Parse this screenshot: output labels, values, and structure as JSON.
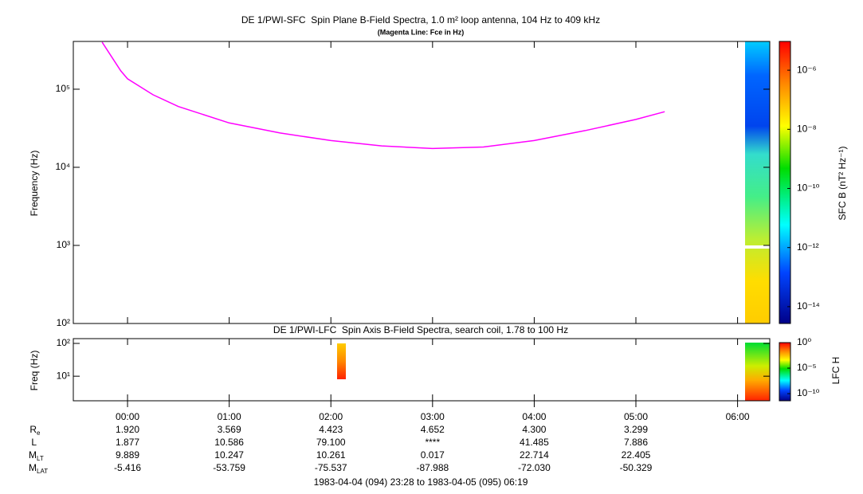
{
  "footer": "1983-04-04 (094) 23:28 to 1983-04-05 (095) 06:19",
  "chart_data": [
    {
      "type": "line",
      "title": "DE 1/PWI-SFC  Spin Plane B-Field Spectra, 1.0 m² loop antenna, 104 Hz to 409 kHz",
      "subtitle": "(Magenta Line: Fce in Hz)",
      "y_label": "Frequency (Hz)",
      "y_scale": "log",
      "xlim": [
        "1983-04-04 23:28",
        "1983-04-05 06:19"
      ],
      "ylim": [
        100,
        409000
      ],
      "yticks": [
        {
          "value": 100,
          "label": "10²"
        },
        {
          "value": 1000,
          "label": "10³"
        },
        {
          "value": 10000,
          "label": "10⁴"
        },
        {
          "value": 100000,
          "label": "10⁵"
        }
      ],
      "x": [
        "1983-04-04 23:45",
        "1983-04-04 23:56",
        "1983-04-05 00:00",
        "1983-04-05 00:15",
        "1983-04-05 00:30",
        "1983-04-05 01:00",
        "1983-04-05 01:30",
        "1983-04-05 02:00",
        "1983-04-05 02:30",
        "1983-04-05 03:00",
        "1983-04-05 03:30",
        "1983-04-05 04:00",
        "1983-04-05 04:30",
        "1983-04-05 05:00",
        "1983-04-05 05:17"
      ],
      "series": [
        {
          "color": "#ff00ff",
          "values": [
            400000,
            172000,
            136000,
            85000,
            60000,
            37000,
            27500,
            22000,
            18800,
            17400,
            18200,
            22000,
            29500,
            41000,
            51500
          ]
        }
      ],
      "colorbar": {
        "label": "SFC B (nT² Hz⁻¹)",
        "scale": "log",
        "lim": [
          2.7e-15,
          9.4e-06
        ],
        "ticks": [
          {
            "value": 1e-06,
            "label": "10⁻⁶"
          },
          {
            "value": 1e-08,
            "label": "10⁻⁸"
          },
          {
            "value": 1e-10,
            "label": "10⁻¹⁰"
          },
          {
            "value": 1e-12,
            "label": "10⁻¹²"
          },
          {
            "value": 1e-14,
            "label": "10⁻¹⁴"
          }
        ]
      }
    },
    {
      "type": "spectrogram",
      "title": "DE 1/PWI-LFC  Spin Axis B-Field Spectra, search coil, 1.78 to 100 Hz",
      "y_label": "Freq (Hz)",
      "y_scale": "log",
      "xlim": [
        "1983-04-04 23:28",
        "1983-04-05 06:19"
      ],
      "ylim": [
        1.78,
        140
      ],
      "yticks": [
        {
          "value": 10,
          "label": "10¹"
        },
        {
          "value": 100,
          "label": "10²"
        }
      ],
      "xticks": [
        {
          "value": "1983-04-05 00:00",
          "label": "00:00"
        },
        {
          "value": "1983-04-05 01:00",
          "label": "01:00"
        },
        {
          "value": "1983-04-05 02:00",
          "label": "02:00"
        },
        {
          "value": "1983-04-05 03:00",
          "label": "03:00"
        },
        {
          "value": "1983-04-05 04:00",
          "label": "04:00"
        },
        {
          "value": "1983-04-05 05:00",
          "label": "05:00"
        },
        {
          "value": "1983-04-05 06:00",
          "label": "06:00"
        }
      ],
      "colorbar": {
        "label": "LFC H",
        "scale": "log",
        "lim": [
          4e-12,
          1
        ],
        "ticks": [
          {
            "value": 1,
            "label": "10⁰"
          },
          {
            "value": 1e-05,
            "label": "10⁻⁵"
          },
          {
            "value": 1e-10,
            "label": "10⁻¹⁰"
          }
        ]
      }
    }
  ],
  "ephemeris": {
    "rows": [
      {
        "label": "R",
        "sub": "e",
        "values": [
          "1.920",
          "3.569",
          "4.423",
          "4.652",
          "4.300",
          "3.299"
        ]
      },
      {
        "label": "L",
        "values": [
          "1.877",
          "10.586",
          "79.100",
          "****",
          "41.485",
          "7.886"
        ]
      },
      {
        "label": "M",
        "sub": "LT",
        "values": [
          "9.889",
          "10.247",
          "10.261",
          "0.017",
          "22.714",
          "22.405"
        ]
      },
      {
        "label": "M",
        "sub": "LAT",
        "values": [
          "-5.416",
          "-53.759",
          "-75.537",
          "-87.988",
          "-72.030",
          "-50.329"
        ]
      }
    ]
  }
}
